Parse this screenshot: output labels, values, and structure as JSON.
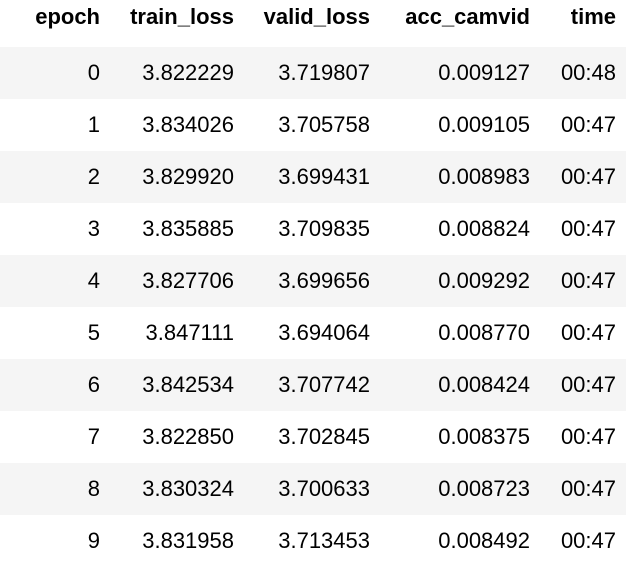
{
  "table": {
    "columns": [
      "epoch",
      "train_loss",
      "valid_loss",
      "acc_camvid",
      "time"
    ],
    "rows": [
      [
        "0",
        "3.822229",
        "3.719807",
        "0.009127",
        "00:48"
      ],
      [
        "1",
        "3.834026",
        "3.705758",
        "0.009105",
        "00:47"
      ],
      [
        "2",
        "3.829920",
        "3.699431",
        "0.008983",
        "00:47"
      ],
      [
        "3",
        "3.835885",
        "3.709835",
        "0.008824",
        "00:47"
      ],
      [
        "4",
        "3.827706",
        "3.699656",
        "0.009292",
        "00:47"
      ],
      [
        "5",
        "3.847111",
        "3.694064",
        "0.008770",
        "00:47"
      ],
      [
        "6",
        "3.842534",
        "3.707742",
        "0.008424",
        "00:47"
      ],
      [
        "7",
        "3.822850",
        "3.702845",
        "0.008375",
        "00:47"
      ],
      [
        "8",
        "3.830324",
        "3.700633",
        "0.008723",
        "00:47"
      ],
      [
        "9",
        "3.831958",
        "3.713453",
        "0.008492",
        "00:47"
      ]
    ]
  }
}
